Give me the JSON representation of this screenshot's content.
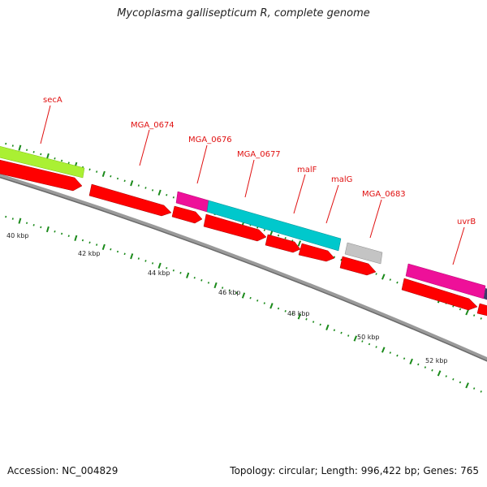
{
  "header": {
    "title": "Mycoplasma gallisepticum R, complete genome"
  },
  "footer": {
    "accession": "Accession: NC_004829",
    "summary": "Topology: circular; Length: 996,422 bp; Genes: 765"
  },
  "colors": {
    "label": "#e01010",
    "cds": "#ff0000",
    "secA": "#aaf033",
    "mga0676": "#ee1099",
    "maltose_operon": "#00c8cc",
    "mga0683": "#c4c4c4",
    "uvrB": "#ee1099",
    "next_gene": "#3a3a6a",
    "backbone": "#888888",
    "ticks": "#1a8a1a"
  },
  "gene_labels": [
    {
      "id": "secA",
      "text": "secA"
    },
    {
      "id": "mga0674",
      "text": "MGA_0674"
    },
    {
      "id": "mga0676",
      "text": "MGA_0676"
    },
    {
      "id": "mga0677",
      "text": "MGA_0677"
    },
    {
      "id": "malF",
      "text": "malF"
    },
    {
      "id": "malG",
      "text": "malG"
    },
    {
      "id": "mga0683",
      "text": "MGA_0683"
    },
    {
      "id": "uvrB",
      "text": "uvrB"
    }
  ],
  "scale_labels": [
    "40 kbp",
    "42 kbp",
    "44 kbp",
    "46 kbp",
    "48 kbp",
    "50 kbp",
    "52 kbp"
  ]
}
